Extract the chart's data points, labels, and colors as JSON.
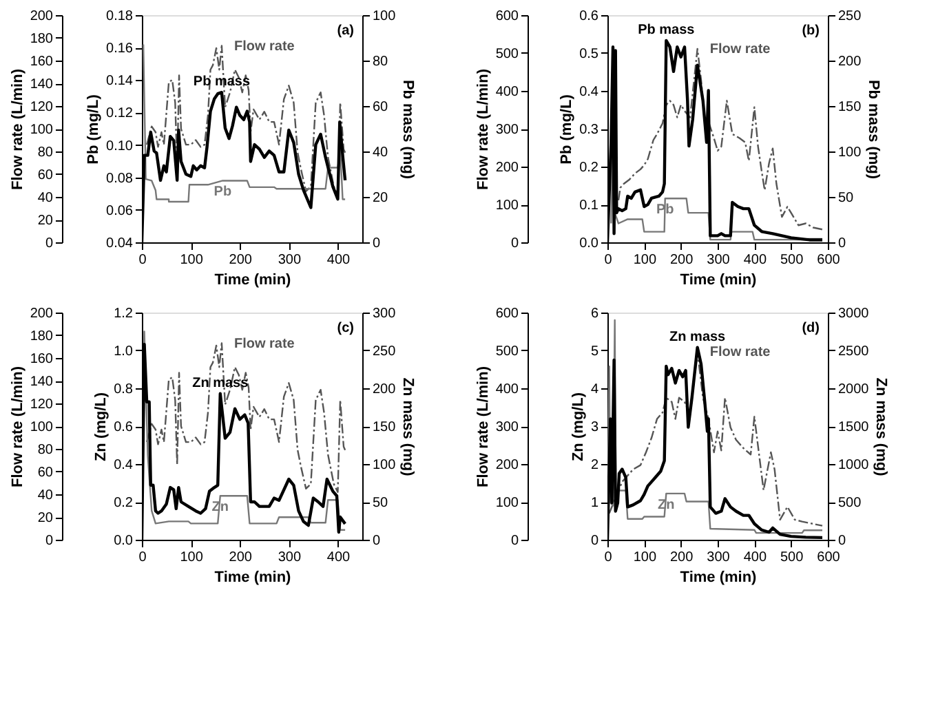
{
  "chart_data": [
    {
      "type": "line",
      "xlabel": "Time (min)",
      "ylabel": "Pb (mg/L)",
      "y2label": "Pb mass (mg)",
      "y3label": "Flow rate (L/min)",
      "grid": false,
      "xlim": [
        0,
        450
      ],
      "xticks": [
        0,
        100,
        200,
        300,
        400
      ],
      "ylim": [
        0.04,
        0.18
      ],
      "yticks": [
        0.04,
        0.06,
        0.08,
        {
          "value": 0.1,
          "label": "0.10"
        },
        0.12,
        0.14,
        0.16,
        0.18
      ],
      "y2lim": [
        0,
        100
      ],
      "y2ticks": [
        0,
        20,
        40,
        60,
        80,
        100
      ],
      "y3lim": [
        0,
        200
      ],
      "y3ticks": [
        0,
        20,
        40,
        60,
        80,
        100,
        120,
        140,
        160,
        180,
        200
      ],
      "annotations": [
        "(a)"
      ],
      "series": [
        {
          "name": "Flow rate",
          "axis": "y3",
          "color": "#555555",
          "line_style": "dashed",
          "x": [
            10,
            20,
            28,
            33,
            40,
            45,
            55,
            62,
            68,
            72,
            76,
            80,
            90,
            100,
            110,
            120,
            128,
            135,
            140,
            145,
            152,
            158,
            163,
            170,
            180,
            190,
            198,
            205,
            212,
            218,
            222,
            228,
            240,
            250,
            260,
            270,
            280,
            290,
            300,
            310,
            318,
            325,
            335,
            345,
            355,
            365,
            372,
            380,
            392,
            400,
            405,
            412,
            415
          ],
          "values": [
            86,
            102,
            97,
            84,
            97,
            86,
            141,
            143,
            123,
            66,
            147,
            100,
            86,
            86,
            90,
            84,
            86,
            112,
            152,
            156,
            171,
            152,
            173,
            119,
            132,
            152,
            145,
            132,
            147,
            134,
            97,
            117,
            108,
            115,
            106,
            106,
            86,
            126,
            138,
            123,
            79,
            64,
            45,
            49,
            123,
            132,
            112,
            75,
            49,
            42,
            123,
            82,
            79
          ]
        },
        {
          "name": "Pb",
          "axis": "y",
          "color": "#777777",
          "line_style": "solid",
          "x": [
            3,
            8,
            20,
            28,
            30,
            55,
            55,
            95,
            97,
            135,
            165,
            215,
            220,
            270,
            275,
            375,
            380,
            400,
            405,
            410,
            415
          ],
          "values": [
            0.162,
            0.079,
            0.078,
            0.072,
            0.0665,
            0.0665,
            0.065,
            0.065,
            0.0755,
            0.0755,
            0.078,
            0.078,
            0.074,
            0.074,
            0.073,
            0.073,
            0.086,
            0.086,
            0.0975,
            0.0665,
            0.0665
          ]
        },
        {
          "name": "Pb mass",
          "axis": "y2",
          "color": "#000000",
          "line_style": "solid",
          "x": [
            0,
            5,
            12,
            18,
            25,
            30,
            38,
            45,
            50,
            58,
            65,
            72,
            75,
            80,
            90,
            100,
            105,
            112,
            120,
            128,
            133,
            140,
            148,
            155,
            163,
            170,
            178,
            185,
            193,
            200,
            208,
            215,
            220,
            222,
            230,
            240,
            250,
            260,
            270,
            280,
            290,
            300,
            310,
            320,
            330,
            345,
            355,
            365,
            375,
            390,
            400,
            404,
            410,
            415
          ],
          "values": [
            0,
            38.3,
            38.3,
            48.5,
            40.2,
            39.3,
            27.3,
            33.7,
            31,
            46.6,
            44.8,
            27.3,
            49.4,
            35.6,
            30,
            29,
            33.7,
            31.9,
            33.7,
            32.8,
            42,
            57.7,
            63.2,
            65.4,
            66,
            50.3,
            45.7,
            51.2,
            59.5,
            55.9,
            54,
            57.7,
            53,
            35.6,
            43,
            41,
            37.4,
            40.2,
            38.3,
            31,
            31,
            49.4,
            43.9,
            30,
            23,
            15.3,
            43,
            47.6,
            37.4,
            24.5,
            19,
            53,
            38.3,
            27.3
          ]
        }
      ]
    },
    {
      "type": "line",
      "xlabel": "Time (min)",
      "ylabel": "Pb (mg/L)",
      "y2label": "Pb mass (mg)",
      "y3label": "Flow rate (L/min)",
      "grid": false,
      "xlim": [
        0,
        600
      ],
      "xticks": [
        0,
        100,
        200,
        300,
        400,
        500,
        600
      ],
      "ylim": [
        0,
        0.6
      ],
      "yticks": [
        {
          "value": 0,
          "label": "0.0"
        },
        0.1,
        0.2,
        0.3,
        0.4,
        0.5,
        0.6
      ],
      "y2lim": [
        0,
        250
      ],
      "y2ticks": [
        0,
        50,
        100,
        150,
        200,
        250
      ],
      "y3lim": [
        0,
        600
      ],
      "y3ticks": [
        0,
        100,
        200,
        300,
        400,
        500,
        600
      ],
      "annotations": [
        "(b)"
      ],
      "series": [
        {
          "name": "Flow rate",
          "axis": "y3",
          "color": "#555555",
          "line_style": "dashed",
          "x": [
            30,
            35,
            45,
            60,
            75,
            90,
            100,
            110,
            125,
            135,
            150,
            160,
            170,
            180,
            190,
            200,
            210,
            225,
            245,
            255,
            265,
            275,
            290,
            300,
            310,
            325,
            340,
            360,
            375,
            385,
            400,
            410,
            420,
            428,
            440,
            450,
            460,
            475,
            490,
            500,
            520,
            540,
            560,
            585
          ],
          "values": [
            111,
            144,
            155,
            166,
            182,
            193,
            204,
            220,
            270,
            286,
            314,
            363,
            374,
            363,
            330,
            363,
            347,
            330,
            511,
            429,
            319,
            319,
            275,
            242,
            253,
            374,
            286,
            275,
            264,
            215,
            357,
            253,
            187,
            138,
            209,
            248,
            155,
            67,
            94,
            78,
            45,
            50,
            39,
            34
          ]
        },
        {
          "name": "Pb",
          "axis": "y",
          "color": "#777777",
          "line_style": "solid",
          "x": [
            10,
            15,
            20,
            30,
            55,
            95,
            100,
            155,
            157,
            215,
            220,
            275,
            280,
            335,
            338,
            395,
            400,
            540,
            545,
            585
          ],
          "values": [
            0.05,
            0.37,
            0.078,
            0.05,
            0.061,
            0.061,
            0.028,
            0.028,
            0.116,
            0.116,
            0.078,
            0.078,
            0.007,
            0.007,
            0.028,
            0.028,
            0.007,
            0.007,
            0.009,
            0.009
          ]
        },
        {
          "name": "Pb mass",
          "axis": "y2",
          "color": "#000000",
          "line_style": "solid",
          "x": [
            0,
            10,
            15,
            18,
            22,
            25,
            30,
            40,
            50,
            55,
            65,
            75,
            90,
            100,
            110,
            120,
            140,
            150,
            155,
            160,
            170,
            180,
            190,
            200,
            210,
            218,
            222,
            232,
            245,
            260,
            270,
            275,
            280,
            300,
            310,
            320,
            335,
            340,
            355,
            370,
            385,
            400,
            420,
            450,
            500,
            550,
            585
          ],
          "values": [
            0,
            110,
            215,
            9.6,
            211,
            32.5,
            37,
            34.8,
            37,
            50.8,
            48.5,
            55.4,
            57.7,
            39.4,
            41.6,
            48.5,
            50.8,
            55.4,
            64.5,
            222,
            215,
            188,
            215,
            204,
            215,
            156,
            106,
            135,
            195,
            156,
            110,
            167,
            7.3,
            7.3,
            9.6,
            7.3,
            7.3,
            44,
            39.4,
            37,
            37,
            18.8,
            11.9,
            9.6,
            5,
            2.7,
            2.7
          ]
        }
      ]
    },
    {
      "type": "line",
      "xlabel": "Time (min)",
      "ylabel": "Zn (mg/L)",
      "y2label": "Zn mass (mg)",
      "y3label": "Flow rate (L/min)",
      "grid": false,
      "xlim": [
        0,
        450
      ],
      "xticks": [
        0,
        100,
        200,
        300,
        400
      ],
      "ylim": [
        0,
        1.2
      ],
      "yticks": [
        {
          "value": 0,
          "label": "0.0"
        },
        0.2,
        0.4,
        0.6,
        0.8,
        {
          "value": 1,
          "label": "1.0"
        },
        1.2
      ],
      "y2lim": [
        0,
        300
      ],
      "y2ticks": [
        0,
        50,
        100,
        150,
        200,
        250,
        300
      ],
      "y3lim": [
        0,
        200
      ],
      "y3ticks": [
        0,
        20,
        40,
        60,
        80,
        100,
        120,
        140,
        160,
        180,
        200
      ],
      "annotations": [
        "(c)"
      ],
      "series": [
        {
          "name": "Flow rate",
          "axis": "y3",
          "color": "#555555",
          "line_style": "dashed",
          "x": [
            10,
            20,
            28,
            33,
            40,
            45,
            55,
            62,
            68,
            72,
            76,
            80,
            90,
            100,
            110,
            120,
            128,
            135,
            140,
            145,
            152,
            158,
            163,
            170,
            180,
            190,
            198,
            205,
            212,
            218,
            222,
            228,
            240,
            250,
            260,
            270,
            280,
            290,
            300,
            310,
            318,
            325,
            335,
            345,
            355,
            365,
            372,
            380,
            392,
            400,
            405,
            412,
            415
          ],
          "values": [
            86,
            102,
            97,
            84,
            97,
            86,
            141,
            143,
            123,
            66,
            147,
            100,
            86,
            86,
            90,
            84,
            86,
            112,
            152,
            156,
            171,
            152,
            173,
            119,
            132,
            152,
            145,
            132,
            147,
            134,
            97,
            117,
            108,
            115,
            106,
            106,
            86,
            126,
            138,
            123,
            79,
            64,
            45,
            49,
            123,
            132,
            112,
            75,
            49,
            42,
            123,
            82,
            79
          ]
        },
        {
          "name": "Zn",
          "axis": "y",
          "color": "#777777",
          "line_style": "solid",
          "x": [
            0,
            5,
            12,
            20,
            28,
            55,
            95,
            100,
            155,
            160,
            215,
            220,
            275,
            280,
            340,
            345,
            375,
            380,
            400,
            405,
            415
          ],
          "values": [
            0,
            1.1,
            0.446,
            0.153,
            0.086,
            0.097,
            0.097,
            0.086,
            0.086,
            0.232,
            0.232,
            0.086,
            0.086,
            0.119,
            0.119,
            0.09,
            0.09,
            0.21,
            0.21,
            0.052,
            0.052
          ]
        },
        {
          "name": "Zn mass",
          "axis": "y2",
          "color": "#000000",
          "line_style": "solid",
          "x": [
            0,
            5,
            10,
            15,
            18,
            23,
            28,
            33,
            40,
            50,
            58,
            65,
            70,
            75,
            80,
            95,
            110,
            120,
            130,
            138,
            148,
            155,
            160,
            170,
            180,
            190,
            200,
            210,
            217,
            222,
            230,
            240,
            260,
            270,
            280,
            300,
            310,
            320,
            330,
            340,
            350,
            360,
            370,
            378,
            390,
            398,
            402,
            405,
            415
          ],
          "values": [
            0,
            258,
            182,
            182,
            72,
            72,
            38,
            35,
            38,
            47,
            69,
            66,
            41,
            69,
            50,
            44,
            38,
            35,
            41,
            64,
            69,
            72,
            193,
            134,
            142,
            173,
            159,
            165,
            154,
            50,
            50,
            44,
            44,
            55,
            52,
            80,
            72,
            38,
            24,
            19,
            55,
            50,
            44,
            80,
            64,
            58,
            10,
            30,
            21
          ]
        }
      ]
    },
    {
      "type": "line",
      "xlabel": "Time (min)",
      "ylabel": "Zn (mg/L)",
      "y2label": "Zn mass (mg)",
      "y3label": "Flow rate (L/min)",
      "grid": false,
      "xlim": [
        0,
        600
      ],
      "xticks": [
        0,
        100,
        200,
        300,
        400,
        500,
        600
      ],
      "ylim": [
        0,
        6
      ],
      "yticks": [
        0,
        1,
        2,
        3,
        4,
        5,
        6
      ],
      "y2lim": [
        0,
        3000
      ],
      "y2ticks": [
        0,
        500,
        1000,
        1500,
        2000,
        2500,
        3000
      ],
      "y3lim": [
        0,
        600
      ],
      "y3ticks": [
        0,
        100,
        200,
        300,
        400,
        500,
        600
      ],
      "annotations": [
        "(d)"
      ],
      "series": [
        {
          "name": "Flow rate",
          "axis": "y3",
          "color": "#555555",
          "line_style": "dashed",
          "x": [
            5,
            40,
            50,
            70,
            90,
            105,
            120,
            135,
            150,
            160,
            175,
            185,
            195,
            210,
            225,
            245,
            260,
            275,
            290,
            300,
            310,
            320,
            335,
            350,
            370,
            390,
            400,
            410,
            425,
            445,
            455,
            470,
            490,
            510,
            530,
            560,
            585
          ],
          "values": [
            70,
            153,
            164,
            186,
            197,
            231,
            269,
            319,
            336,
            375,
            364,
            319,
            375,
            364,
            330,
            497,
            375,
            319,
            231,
            286,
            236,
            375,
            297,
            264,
            242,
            225,
            325,
            247,
            131,
            231,
            186,
            53,
            87,
            53,
            48,
            42,
            37
          ]
        },
        {
          "name": "Zn",
          "axis": "y",
          "color": "#777777",
          "line_style": "solid",
          "x": [
            0,
            5,
            8,
            15,
            20,
            23,
            50,
            55,
            95,
            100,
            155,
            160,
            210,
            215,
            275,
            280,
            400,
            405,
            530,
            535,
            585
          ],
          "values": [
            0,
            4.58,
            0.98,
            0.9,
            5.8,
            1.3,
            1.3,
            0.55,
            0.55,
            0.61,
            0.61,
            1.22,
            1.22,
            1.01,
            1.01,
            0.29,
            0.26,
            0.18,
            0.18,
            0.25,
            0.25
          ]
        },
        {
          "name": "Zn mass",
          "axis": "y2",
          "color": "#000000",
          "line_style": "solid",
          "x": [
            0,
            8,
            12,
            18,
            22,
            28,
            32,
            40,
            50,
            55,
            70,
            90,
            100,
            110,
            120,
            130,
            145,
            155,
            160,
            165,
            175,
            185,
            195,
            205,
            213,
            220,
            230,
            245,
            255,
            265,
            272,
            275,
            280,
            295,
            310,
            320,
            335,
            350,
            370,
            385,
            400,
            420,
            440,
            450,
            470,
            500,
            540,
            585
          ],
          "values": [
            0,
            1597,
            488,
            2374,
            377,
            488,
            876,
            932,
            821,
            433,
            460,
            516,
            599,
            710,
            765,
            821,
            904,
            1043,
            2291,
            2180,
            2263,
            2069,
            2235,
            2152,
            2235,
            1486,
            1875,
            2540,
            2318,
            1819,
            1431,
            1597,
            433,
            349,
            377,
            543,
            433,
            377,
            322,
            322,
            211,
            128,
            100,
            155,
            72,
            44,
            33,
            28
          ]
        }
      ]
    }
  ]
}
